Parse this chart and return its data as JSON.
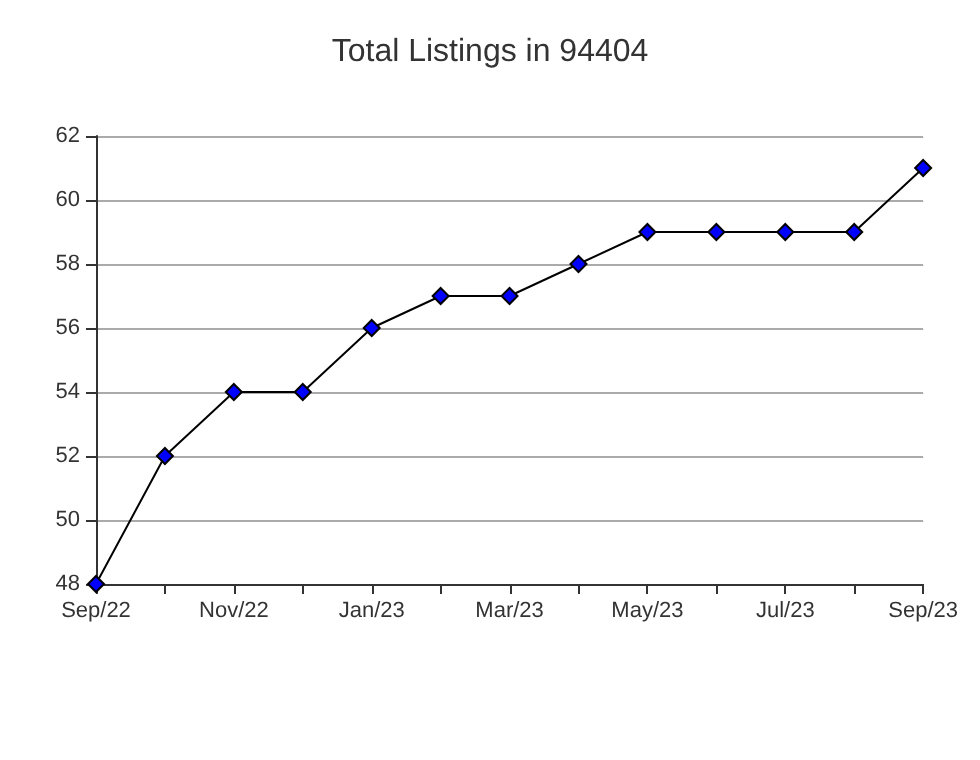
{
  "chart_data": {
    "type": "line",
    "title": "Total Listings in 94404",
    "categories": [
      "Sep/22",
      null,
      "Nov/22",
      null,
      "Jan/23",
      null,
      "Mar/23",
      null,
      "May/23",
      null,
      "Jul/23",
      null,
      "Sep/23"
    ],
    "series": [
      {
        "color": "#0000ff",
        "values": [
          48,
          52,
          54,
          54,
          56,
          57,
          57,
          58,
          59,
          59,
          59,
          59,
          61
        ]
      }
    ],
    "ylim": [
      48,
      62
    ],
    "yticks": [
      48,
      50,
      52,
      54,
      56,
      58,
      60,
      62
    ],
    "grid": "y",
    "marker": "diamond",
    "line_style": "solid"
  }
}
